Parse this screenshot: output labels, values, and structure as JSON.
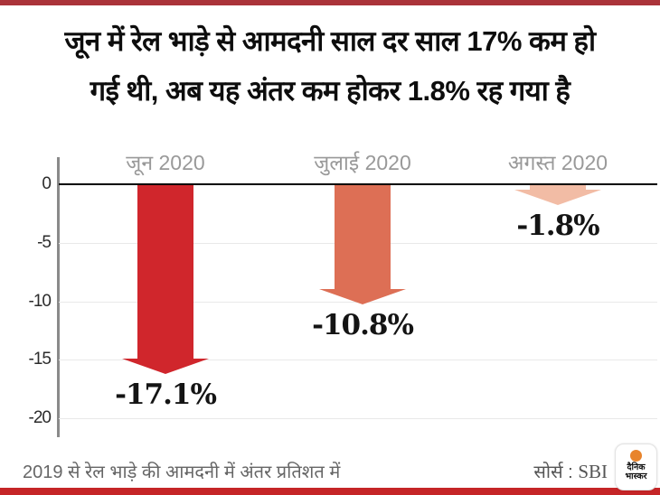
{
  "page": {
    "title_line1": "जून में रेल भाड़े से आमदनी साल दर साल 17% कम हो",
    "title_line2": "गई थी, अब यह अंतर कम होकर 1.8% रह गया है"
  },
  "chart_data": {
    "type": "bar",
    "variant": "downward-arrows",
    "title": "",
    "xlabel": "",
    "ylabel": "",
    "categories": [
      "जून 2020",
      "जुलाई 2020",
      "अगस्त 2020"
    ],
    "values": [
      -17.1,
      -10.8,
      -1.8
    ],
    "value_labels": [
      "-17.1%",
      "-10.8%",
      "-1.8%"
    ],
    "bar_colors": [
      "#d0262c",
      "#dd6f55",
      "#f2bca5"
    ],
    "ytick_labels": [
      "0",
      "-5",
      "-10",
      "-15",
      "-20"
    ],
    "ytick_values": [
      0,
      -5,
      -10,
      -15,
      -20
    ],
    "ylim": [
      -20,
      0
    ],
    "grid": true,
    "legend_position": "none",
    "category_label_color": "#999999"
  },
  "footer": {
    "note": "2019 से रेल भाड़े की आमदनी में अंतर प्रतिशत में",
    "source_prefix": "सोर्स :",
    "source_name": "SBI",
    "logo_text_line1": "दैनिक",
    "logo_text_line2": "भास्कर"
  },
  "colors": {
    "top_bar": "#aa3339",
    "bottom_bar": "#c52527",
    "logo_dot": "#e8842c"
  }
}
